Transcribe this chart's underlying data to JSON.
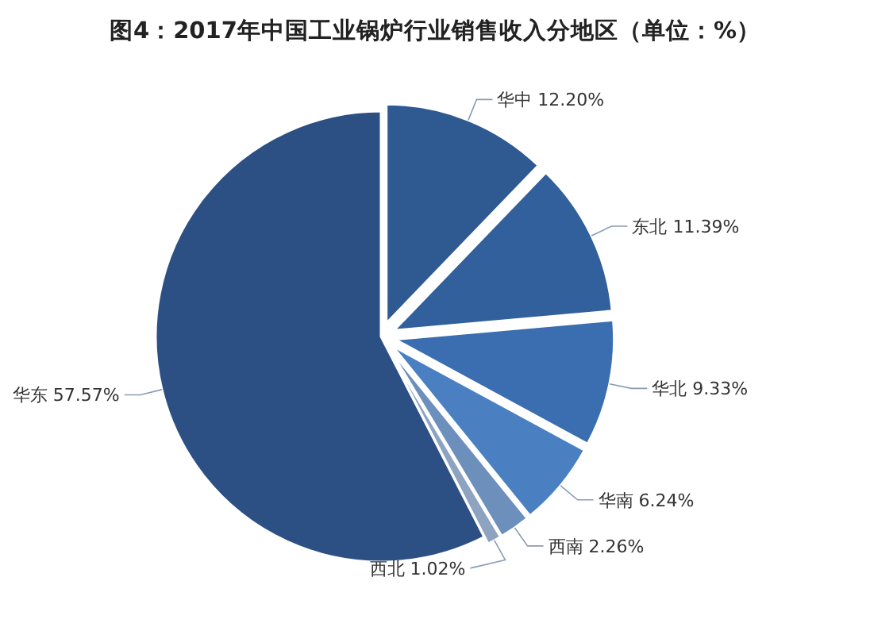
{
  "chart_data": {
    "type": "pie",
    "title": "图4：2017年中国工业锅炉行业销售收入分地区（单位：%）",
    "categories": [
      "华中",
      "东北",
      "华北",
      "华南",
      "西南",
      "西北",
      "华东"
    ],
    "values": [
      12.2,
      11.39,
      9.33,
      6.24,
      2.26,
      1.02,
      57.57
    ],
    "value_labels": [
      "12.20%",
      "11.39%",
      "9.33%",
      "6.24%",
      "2.26%",
      "1.02%",
      "57.57%"
    ],
    "colors": [
      "#2f5991",
      "#31609c",
      "#3a6eb0",
      "#4a80c2",
      "#6d8fbb",
      "#8ea3c0",
      "#2c5084"
    ]
  }
}
